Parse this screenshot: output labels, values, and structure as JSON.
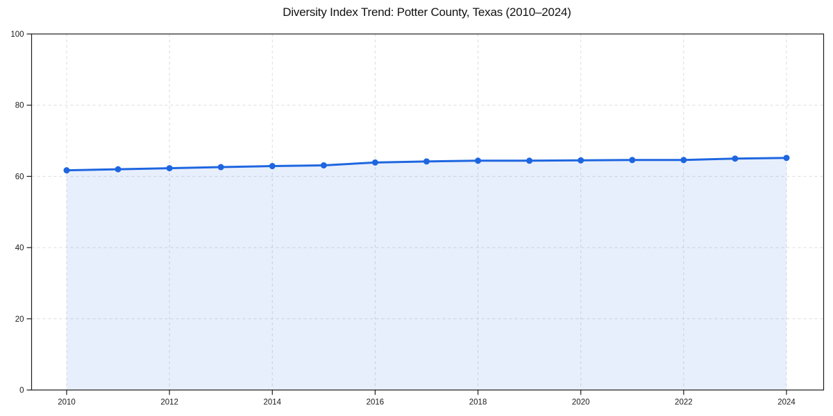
{
  "title": "Diversity Index Trend: Potter County, Texas (2010–2024)",
  "chart_data": {
    "type": "line",
    "title": "Diversity Index Trend: Potter County, Texas (2010–2024)",
    "x": [
      2010,
      2011,
      2012,
      2013,
      2014,
      2015,
      2016,
      2017,
      2018,
      2019,
      2020,
      2021,
      2022,
      2023,
      2024
    ],
    "series": [
      {
        "name": "Diversity Index",
        "values": [
          61.7,
          62.0,
          62.3,
          62.6,
          62.9,
          63.1,
          63.9,
          64.2,
          64.4,
          64.4,
          64.5,
          64.6,
          64.6,
          65.0,
          65.2
        ]
      }
    ],
    "xlabel": "",
    "ylabel": "",
    "ylim": [
      0,
      100
    ],
    "yticks": [
      0,
      20,
      40,
      60,
      80,
      100
    ],
    "xticks": [
      2010,
      2012,
      2014,
      2016,
      2018,
      2020,
      2022,
      2024
    ],
    "grid": true,
    "grid_style": "dashed",
    "legend": false,
    "area_fill": true,
    "marker": "circle",
    "colors": {
      "line": "#1e66e0",
      "marker": "#1e66e0",
      "fill": "rgba(30,102,224,0.10)",
      "grid": "#dcdcdc",
      "axis": "#1a1a1a",
      "tick_text": "#1a1a1a",
      "title_text": "#111111",
      "background": "#ffffff"
    }
  }
}
